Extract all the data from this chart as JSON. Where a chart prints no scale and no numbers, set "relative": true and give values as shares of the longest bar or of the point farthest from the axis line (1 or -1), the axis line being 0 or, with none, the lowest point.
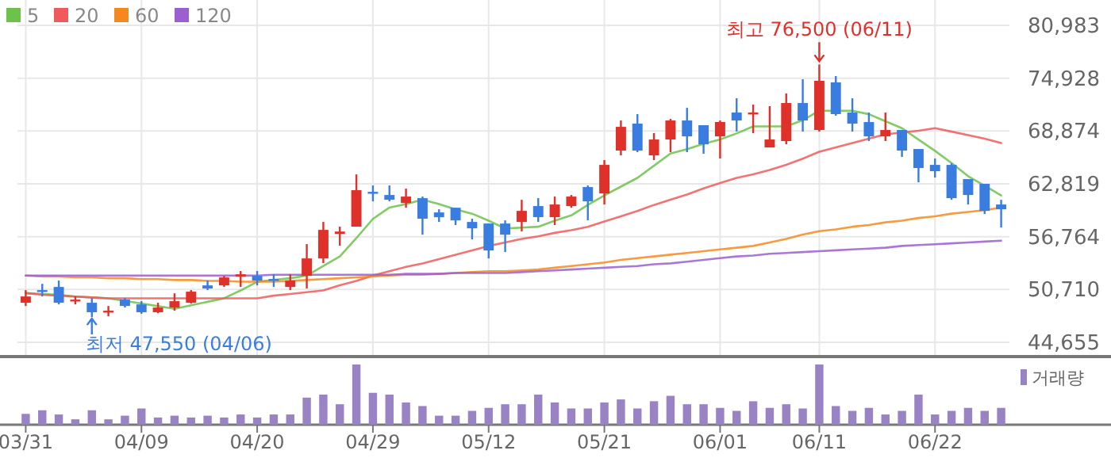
{
  "chart_data": [
    {
      "type": "candlestick",
      "categories": [
        "03/31",
        null,
        null,
        null,
        null,
        null,
        null,
        "04/09",
        null,
        null,
        null,
        null,
        null,
        null,
        "04/20",
        null,
        null,
        null,
        null,
        null,
        null,
        "04/29",
        null,
        null,
        null,
        null,
        null,
        null,
        "05/12",
        null,
        null,
        null,
        null,
        null,
        null,
        "05/21",
        null,
        null,
        null,
        null,
        null,
        null,
        "06/01",
        null,
        null,
        null,
        null,
        null,
        "06/11",
        null,
        null,
        null,
        null,
        null,
        null,
        "06/22",
        null,
        null,
        null,
        null
      ],
      "ohlc": [
        [
          49190,
          50640,
          48820,
          49910
        ],
        [
          50640,
          51360,
          49910,
          50460
        ],
        [
          51000,
          51730,
          49000,
          49190
        ],
        [
          49370,
          49910,
          49000,
          49550
        ],
        [
          49190,
          49730,
          47550,
          48100
        ],
        [
          48080,
          48820,
          47640,
          48280
        ],
        [
          49550,
          49730,
          48640,
          48820
        ],
        [
          49000,
          49370,
          47920,
          48100
        ],
        [
          48100,
          49190,
          47990,
          48640
        ],
        [
          48640,
          50270,
          48280,
          49370
        ],
        [
          49190,
          50640,
          49100,
          50460
        ],
        [
          51180,
          51730,
          50640,
          50820
        ],
        [
          51180,
          52270,
          51000,
          52090
        ],
        [
          52180,
          52820,
          51000,
          52450
        ],
        [
          52270,
          52820,
          51180,
          51730
        ],
        [
          51910,
          52450,
          51000,
          51730
        ],
        [
          51000,
          52450,
          50640,
          51730
        ],
        [
          52270,
          55910,
          50820,
          54270
        ],
        [
          54270,
          58450,
          53730,
          57540
        ],
        [
          57080,
          57910,
          55730,
          57350
        ],
        [
          57910,
          63900,
          57910,
          62090
        ],
        [
          61900,
          62630,
          60810,
          61720
        ],
        [
          61540,
          62630,
          60810,
          60990
        ],
        [
          60620,
          62270,
          60080,
          61360
        ],
        [
          61180,
          61360,
          56990,
          58820
        ],
        [
          59540,
          59900,
          58450,
          58990
        ],
        [
          60080,
          60080,
          58090,
          58630
        ],
        [
          58450,
          58820,
          56450,
          57720
        ],
        [
          58270,
          58270,
          54270,
          55180
        ],
        [
          58270,
          58630,
          55000,
          56990
        ],
        [
          58450,
          60990,
          57360,
          59720
        ],
        [
          60270,
          61180,
          58450,
          59000
        ],
        [
          59000,
          61360,
          58090,
          60450
        ],
        [
          60270,
          61540,
          60080,
          61360
        ],
        [
          62450,
          62630,
          58630,
          60810
        ],
        [
          61720,
          65540,
          60450,
          64990
        ],
        [
          66630,
          70080,
          66080,
          69350
        ],
        [
          69720,
          70810,
          66450,
          66630
        ],
        [
          66080,
          68630,
          65540,
          67900
        ],
        [
          67900,
          70260,
          66450,
          70080
        ],
        [
          70080,
          71530,
          66450,
          68260
        ],
        [
          69540,
          69540,
          66260,
          67350
        ],
        [
          68260,
          70080,
          65720,
          69900
        ],
        [
          70990,
          72620,
          68810,
          70080
        ],
        [
          70810,
          71900,
          68630,
          70990
        ],
        [
          66990,
          71720,
          66990,
          67900
        ],
        [
          67720,
          73170,
          67350,
          72080
        ],
        [
          72080,
          74810,
          68810,
          70080
        ],
        [
          68990,
          76500,
          68810,
          74630
        ],
        [
          74450,
          75170,
          70630,
          70810
        ],
        [
          70990,
          72620,
          68810,
          69720
        ],
        [
          69900,
          70990,
          67720,
          68260
        ],
        [
          68260,
          70990,
          67720,
          68990
        ],
        [
          68990,
          68990,
          65900,
          66630
        ],
        [
          66810,
          66810,
          62990,
          64630
        ],
        [
          64990,
          65720,
          63540,
          64270
        ],
        [
          64990,
          65170,
          60990,
          61180
        ],
        [
          63360,
          63360,
          60450,
          61540
        ],
        [
          62820,
          62820,
          59360,
          59720
        ],
        [
          60450,
          60990,
          57810,
          59900
        ]
      ],
      "colors": [
        "#e0302a",
        "#3a7de0",
        "#3a7de0",
        "#e0302a",
        "#3a7de0",
        "#e0302a",
        "#3a7de0",
        "#3a7de0",
        "#e0302a",
        "#e0302a",
        "#e0302a",
        "#3a7de0",
        "#e0302a",
        "#e0302a",
        "#3a7de0",
        "#3a7de0",
        "#e0302a",
        "#e0302a",
        "#e0302a",
        "#e0302a",
        "#e0302a",
        "#3a7de0",
        "#3a7de0",
        "#e0302a",
        "#3a7de0",
        "#3a7de0",
        "#3a7de0",
        "#3a7de0",
        "#3a7de0",
        "#3a7de0",
        "#e0302a",
        "#3a7de0",
        "#e0302a",
        "#e0302a",
        "#3a7de0",
        "#e0302a",
        "#e0302a",
        "#3a7de0",
        "#e0302a",
        "#e0302a",
        "#3a7de0",
        "#3a7de0",
        "#e0302a",
        "#3a7de0",
        "#e0302a",
        "#e0302a",
        "#e0302a",
        "#3a7de0",
        "#e0302a",
        "#3a7de0",
        "#3a7de0",
        "#3a7de0",
        "#e0302a",
        "#3a7de0",
        "#3a7de0",
        "#3a7de0",
        "#3a7de0",
        "#3a7de0",
        "#3a7de0",
        "#3a7de0"
      ],
      "series": [
        {
          "name": "5",
          "type": "line",
          "color": "#6cc24a",
          "values": [
            50300,
            50200,
            50100,
            49900,
            49800,
            49700,
            49400,
            49100,
            48800,
            48500,
            48900,
            49300,
            49700,
            50600,
            51600,
            51800,
            52000,
            52300,
            53400,
            54500,
            56600,
            58800,
            60100,
            60500,
            61000,
            60500,
            59900,
            59400,
            58600,
            57700,
            57800,
            57900,
            58600,
            59200,
            60400,
            61500,
            62500,
            63500,
            64900,
            66300,
            66800,
            67400,
            67900,
            68600,
            69400,
            69400,
            69400,
            70100,
            71200,
            71200,
            71200,
            70800,
            70000,
            69200,
            67900,
            66600,
            65200,
            63700,
            62600,
            61500
          ]
        },
        {
          "name": "20",
          "type": "line",
          "color": "#f05a5a",
          "values": [
            50300,
            50100,
            50000,
            49900,
            49800,
            49700,
            49700,
            49700,
            49700,
            49700,
            49700,
            49700,
            49700,
            49700,
            49700,
            50000,
            50200,
            50400,
            50600,
            51200,
            51700,
            52300,
            52800,
            53300,
            53700,
            54200,
            54700,
            55200,
            55700,
            56100,
            56500,
            56800,
            57200,
            57500,
            57900,
            58500,
            59100,
            59700,
            60400,
            61000,
            61600,
            62300,
            62900,
            63500,
            63900,
            64400,
            65000,
            65700,
            66500,
            67000,
            67500,
            68000,
            68500,
            68700,
            68900,
            69200,
            68800,
            68400,
            68000,
            67500
          ]
        },
        {
          "name": "60",
          "type": "line",
          "color": "#f5891f",
          "values": [
            52300,
            52200,
            52200,
            52100,
            52100,
            52000,
            52000,
            51900,
            51900,
            51800,
            51800,
            51700,
            51700,
            51600,
            51600,
            51600,
            51700,
            51800,
            51900,
            52000,
            52100,
            52200,
            52300,
            52400,
            52400,
            52500,
            52600,
            52700,
            52800,
            52800,
            52900,
            53000,
            53200,
            53400,
            53600,
            53800,
            54100,
            54300,
            54500,
            54700,
            54900,
            55100,
            55300,
            55500,
            55700,
            56100,
            56500,
            57000,
            57400,
            57600,
            57900,
            58100,
            58400,
            58600,
            58900,
            59100,
            59400,
            59600,
            59800,
            60100
          ]
        },
        {
          "name": "120",
          "type": "line",
          "color": "#9b5fd0",
          "values": [
            52300,
            52300,
            52300,
            52300,
            52300,
            52300,
            52300,
            52300,
            52300,
            52300,
            52300,
            52300,
            52300,
            52300,
            52300,
            52400,
            52400,
            52400,
            52400,
            52400,
            52400,
            52400,
            52400,
            52500,
            52500,
            52500,
            52600,
            52600,
            52600,
            52600,
            52700,
            52800,
            52900,
            53000,
            53100,
            53200,
            53300,
            53400,
            53600,
            53700,
            53900,
            54100,
            54300,
            54500,
            54600,
            54800,
            54900,
            55000,
            55100,
            55200,
            55300,
            55400,
            55500,
            55700,
            55800,
            55900,
            56000,
            56100,
            56200,
            56300
          ]
        }
      ],
      "ylim": [
        44655,
        80983
      ],
      "yticks": [
        {
          "value": 44655,
          "label": "44,655"
        },
        {
          "value": 50710,
          "label": "50,710"
        },
        {
          "value": 56764,
          "label": "56,764"
        },
        {
          "value": 62819,
          "label": "62,819"
        },
        {
          "value": 68874,
          "label": "68,874"
        },
        {
          "value": 74928,
          "label": "74,928"
        },
        {
          "value": 80983,
          "label": "80,983"
        }
      ],
      "grid": true,
      "legend": "top left",
      "annotations": [
        {
          "text": "최고 76,500 (06/11)",
          "x": "06/11",
          "y": 76500
        },
        {
          "text": "최저 47,550 (04/06)",
          "y": 47550
        }
      ]
    },
    {
      "type": "bar",
      "relative": true,
      "categories": [
        null,
        null,
        null,
        null,
        null,
        null,
        null,
        null,
        null,
        null,
        null,
        null,
        null,
        null,
        null,
        null,
        null,
        null,
        null,
        null,
        null,
        null,
        null,
        null,
        null,
        null,
        null,
        null,
        null,
        null,
        null,
        null,
        null,
        null,
        null,
        null,
        null,
        null,
        null,
        null,
        null,
        null,
        null,
        null,
        null,
        null,
        null,
        null,
        null,
        null,
        null,
        null,
        null,
        null,
        null,
        null,
        null,
        null,
        null,
        null
      ],
      "series": [
        {
          "name": "거래량",
          "color": "#9a83c5",
          "values": [
            0.18,
            0.24,
            0.17,
            0.09,
            0.24,
            0.09,
            0.15,
            0.27,
            0.12,
            0.15,
            0.12,
            0.15,
            0.12,
            0.17,
            0.12,
            0.17,
            0.17,
            0.45,
            0.5,
            0.34,
            1,
            0.53,
            0.5,
            0.37,
            0.31,
            0.15,
            0.15,
            0.23,
            0.28,
            0.34,
            0.34,
            0.5,
            0.37,
            0.27,
            0.27,
            0.37,
            0.42,
            0.27,
            0.39,
            0.48,
            0.34,
            0.34,
            0.28,
            0.23,
            0.39,
            0.28,
            0.34,
            0.27,
            1,
            0.31,
            0.23,
            0.28,
            0.17,
            0.23,
            0.5,
            0.17,
            0.23,
            0.28,
            0.23,
            0.28
          ]
        }
      ],
      "legend": "top right"
    }
  ]
}
